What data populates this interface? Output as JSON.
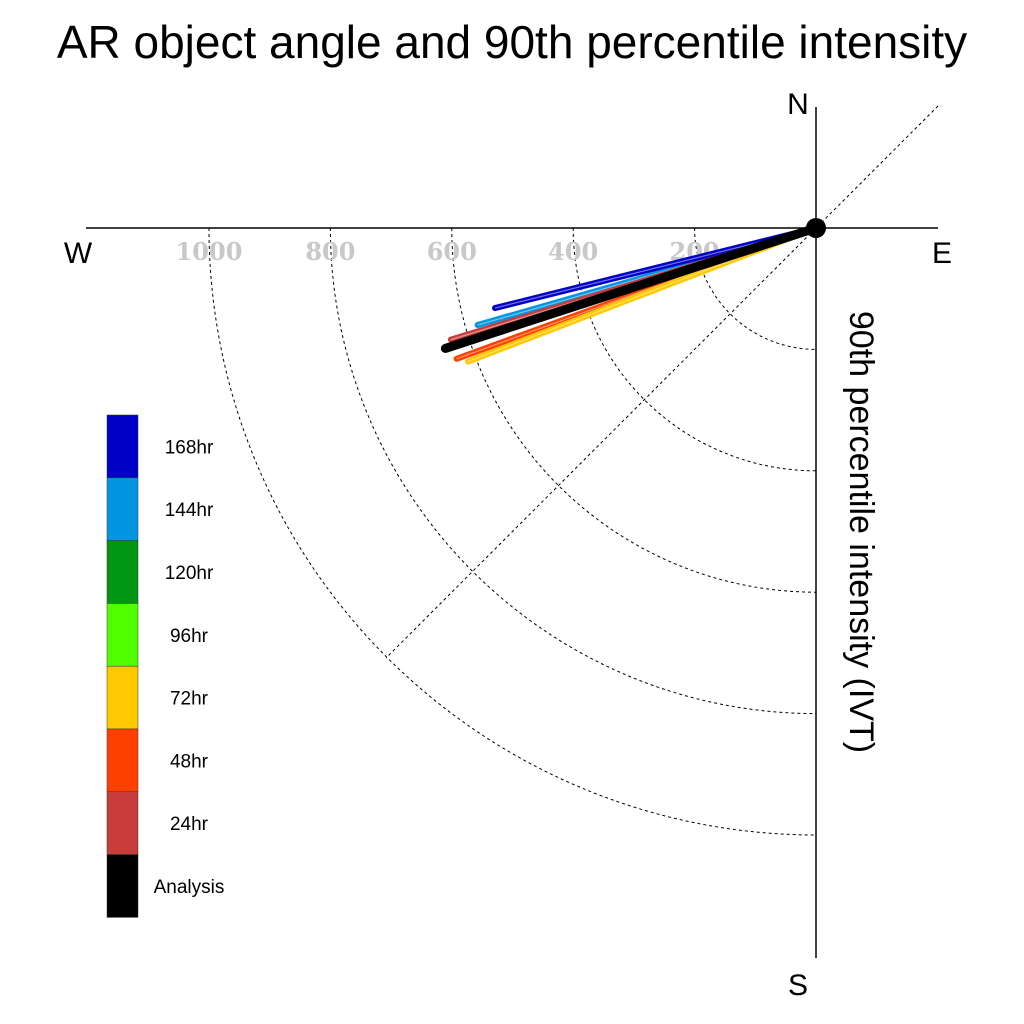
{
  "chart_data": {
    "type": "polar-quadrant-vector",
    "title": "AR object angle and 90th percentile intensity",
    "radial_label": "90th percentile intensity (IVT)",
    "compass": {
      "n": "N",
      "e": "E",
      "s": "S",
      "w": "W"
    },
    "radial_ticks": [
      {
        "value": 200,
        "label": "200"
      },
      {
        "value": 400,
        "label": "400"
      },
      {
        "value": 600,
        "label": "600"
      },
      {
        "value": 800,
        "label": "800"
      },
      {
        "value": 1000,
        "label": "1000"
      }
    ],
    "radial_range": [
      0,
      1000
    ],
    "grid": true,
    "series": [
      {
        "name": "168hr",
        "color": "#0000c8",
        "angle_deg": 256,
        "intensity": 545
      },
      {
        "name": "144hr",
        "color": "#0096e1",
        "angle_deg": 254,
        "intensity": 580
      },
      {
        "name": "120hr",
        "color": "#009614",
        "angle_deg": null,
        "intensity": null
      },
      {
        "name": "96hr",
        "color": "#50ff00",
        "angle_deg": null,
        "intensity": null
      },
      {
        "name": "72hr",
        "color": "#ffc800",
        "angle_deg": 249,
        "intensity": 614
      },
      {
        "name": "48hr",
        "color": "#ff4100",
        "angle_deg": 250,
        "intensity": 630
      },
      {
        "name": "24hr",
        "color": "#c83c3c",
        "angle_deg": 253,
        "intensity": 629
      },
      {
        "name": "Analysis",
        "color": "#000000",
        "angle_deg": 252,
        "intensity": 642
      }
    ],
    "legend_position": "left"
  }
}
